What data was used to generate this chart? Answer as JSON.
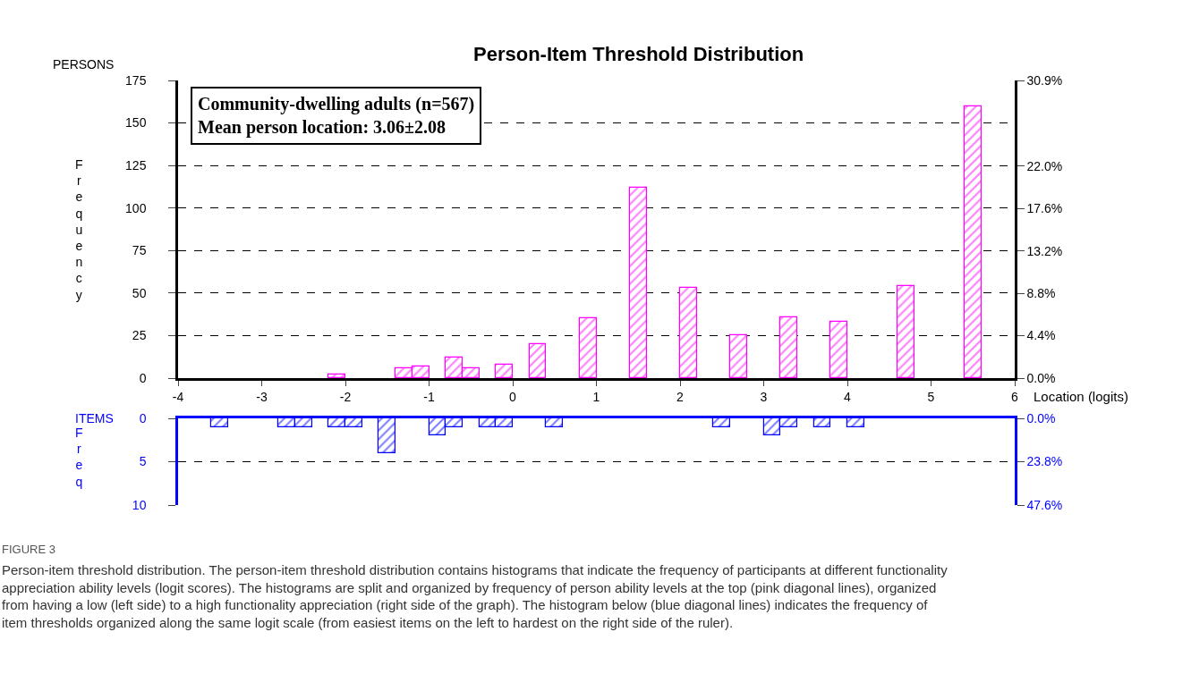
{
  "chart_data": [
    {
      "type": "bar",
      "title": "Person-Item Threshold Distribution",
      "xlabel": "Location (logits)",
      "ylabel": "Frequency",
      "annotations": [
        "PERSONS",
        "Community-dwelling adults (n=567)\nMean person location: 3.06±2.08"
      ],
      "x": [
        -2.1,
        -1.3,
        -1.1,
        -0.7,
        -0.5,
        -0.1,
        0.3,
        0.9,
        1.5,
        2.1,
        2.7,
        3.3,
        3.9,
        4.7,
        5.5
      ],
      "values": [
        2,
        6,
        7,
        12,
        6,
        8,
        20,
        35,
        112,
        53,
        25,
        36,
        33,
        54,
        160
      ],
      "color": "#ff00ff",
      "xlim": [
        -4,
        6
      ],
      "xticks": [
        -4,
        -3,
        -2,
        -1,
        0,
        1,
        2,
        3,
        4,
        5,
        6
      ],
      "ylim": [
        0,
        175
      ],
      "yticks": [
        0,
        25,
        50,
        75,
        100,
        125,
        150,
        175
      ],
      "y2lim": [
        0,
        30.9
      ],
      "y2ticks": [
        {
          "value": 0,
          "label": "0.0%"
        },
        {
          "value": 4.4,
          "label": "4.4%"
        },
        {
          "value": 8.8,
          "label": "8.8%"
        },
        {
          "value": 13.2,
          "label": "13.2%"
        },
        {
          "value": 17.6,
          "label": "17.6%"
        },
        {
          "value": 22.0,
          "label": "22.0%"
        },
        {
          "value": 30.9,
          "label": "30.9%"
        }
      ],
      "grid": "y"
    },
    {
      "type": "bar",
      "ylabel": "Freq",
      "annotations": [
        "ITEMS",
        "FIGURE 3",
        "Person-item threshold distribution. The person-item threshold distribution contains histograms that indicate the frequency of participants at different functionality appreciation ability levels (logit scores). The histograms are split and organized by frequency of person ability levels at the top (pink diagonal lines), organized from having a low (left side) to a high functionality appreciation (right side of the graph). The histogram below (blue diagonal lines) indicates the frequency of item thresholds organized along the same logit scale (from easiest items on the left to hardest on the right side of the ruler)."
      ],
      "x": [
        -3.5,
        -2.7,
        -2.5,
        -2.1,
        -1.9,
        -1.5,
        -0.9,
        -0.7,
        -0.3,
        -0.1,
        0.5,
        2.5,
        3.1,
        3.3,
        3.7,
        4.1
      ],
      "values": [
        1,
        1,
        1,
        1,
        1,
        4,
        2,
        1,
        1,
        1,
        1,
        1,
        2,
        1,
        1,
        1
      ],
      "color": "#0000ff",
      "xlim": [
        -4,
        6
      ],
      "xticks": [
        -4,
        -3,
        -2,
        -1,
        0,
        1,
        2,
        3,
        4,
        5,
        6
      ],
      "ylim": [
        10,
        0
      ],
      "yticks": [
        0,
        5,
        10
      ],
      "y2lim": [
        47.6,
        0
      ],
      "y2ticks": [
        {
          "value": 0,
          "label": "0.0%"
        },
        {
          "value": 23.8,
          "label": "23.8%"
        },
        {
          "value": 47.6,
          "label": "47.6%"
        }
      ],
      "grid": "y",
      "tick_labels": "y"
    }
  ]
}
